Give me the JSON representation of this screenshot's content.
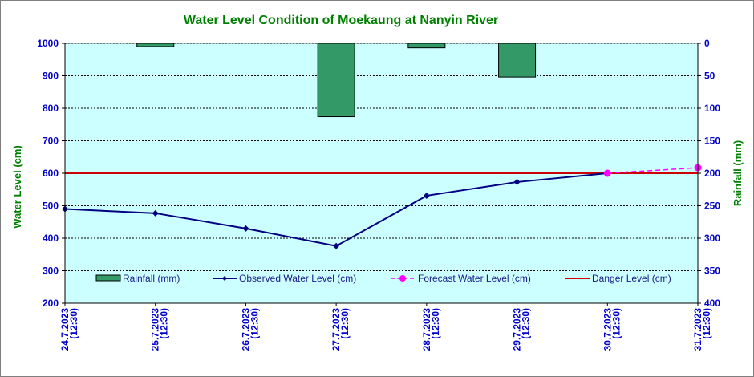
{
  "chart_data": {
    "type": "line",
    "title": "Water Level Condition  of Moekaung  at Nanyin  River",
    "ylabel_left": "Water Level (cm)",
    "ylabel_right": "Rainfall (mm)",
    "y_left_range": [
      200,
      1000
    ],
    "y_left_ticks": [
      "200",
      "300",
      "400",
      "500",
      "600",
      "700",
      "800",
      "900",
      "1000"
    ],
    "y_right_range": [
      400,
      0
    ],
    "y_right_ticks": [
      "400",
      "350",
      "300",
      "250",
      "200",
      "150",
      "100",
      "50",
      "0"
    ],
    "categories": [
      {
        "date": "24.7.2023",
        "time": "(12:30)"
      },
      {
        "date": "25.7.2023",
        "time": "(12:30)"
      },
      {
        "date": "26.7.2023",
        "time": "(12:30)"
      },
      {
        "date": "27.7.2023",
        "time": "(12:30)"
      },
      {
        "date": "28.7.2023",
        "time": "(12:30)"
      },
      {
        "date": "29.7.2023",
        "time": "(12:30)"
      },
      {
        "date": "30.7.2023",
        "time": "(12:30)"
      },
      {
        "date": "31.7.2023",
        "time": "(12:30)"
      }
    ],
    "rainfall": {
      "name": "Rainfall (mm)",
      "color": "#339966",
      "values": [
        null,
        5,
        null,
        113,
        7,
        52,
        null,
        null
      ]
    },
    "observed": {
      "name": "Observed Water Level (cm)",
      "color": "#000080",
      "values": [
        490,
        477,
        430,
        376,
        531,
        573,
        600,
        null
      ]
    },
    "forecast": {
      "name": "Forecast Water Level (cm)",
      "color": "#ff00ff",
      "values": [
        null,
        null,
        null,
        null,
        null,
        null,
        600,
        617
      ]
    },
    "danger": {
      "name": "Danger Level (cm)",
      "color": "#cc0000",
      "value": 600
    },
    "plot_bg": "#ccffff",
    "grid": true,
    "legend_position": "inside-bottom"
  }
}
